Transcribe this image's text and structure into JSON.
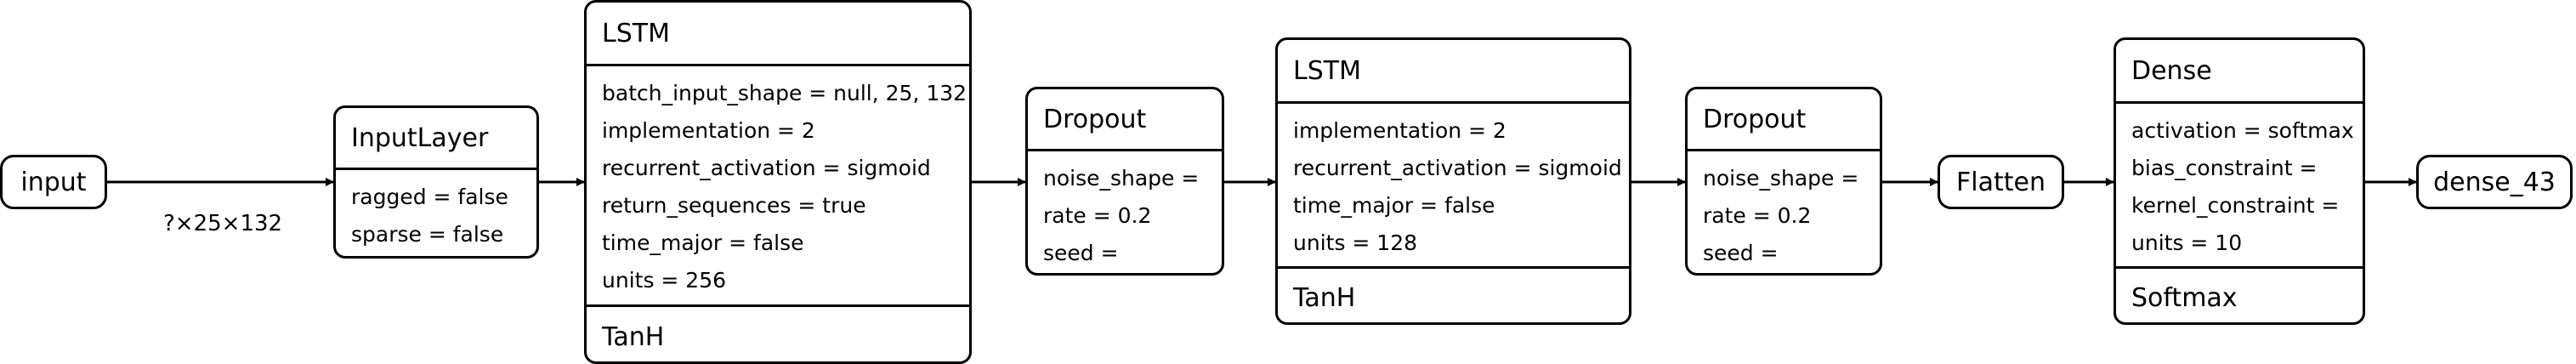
{
  "nodes": {
    "input": {
      "label": "input"
    },
    "inputlayer": {
      "title": "InputLayer",
      "attrs": [
        "ragged = false",
        "sparse = false"
      ]
    },
    "lstm1": {
      "title": "LSTM",
      "attrs": [
        "batch_input_shape = null, 25, 132",
        "implementation = 2",
        "recurrent_activation = sigmoid",
        "return_sequences = true",
        "time_major = false",
        "units = 256"
      ],
      "activation": "TanH"
    },
    "dropout1": {
      "title": "Dropout",
      "attrs": [
        "noise_shape =",
        "rate = 0.2",
        "seed ="
      ]
    },
    "lstm2": {
      "title": "LSTM",
      "attrs": [
        "implementation = 2",
        "recurrent_activation = sigmoid",
        "time_major = false",
        "units = 128"
      ],
      "activation": "TanH"
    },
    "dropout2": {
      "title": "Dropout",
      "attrs": [
        "noise_shape =",
        "rate = 0.2",
        "seed ="
      ]
    },
    "flatten": {
      "label": "Flatten"
    },
    "dense": {
      "title": "Dense",
      "attrs": [
        "activation = softmax",
        "bias_constraint =",
        "kernel_constraint =",
        "units = 10"
      ],
      "activation": "Softmax"
    },
    "output": {
      "label": "dense_43"
    }
  },
  "edge_labels": {
    "input_to_inputlayer": "?×25×132"
  },
  "colors": {
    "stroke": "#000000",
    "background": "#ffffff"
  }
}
